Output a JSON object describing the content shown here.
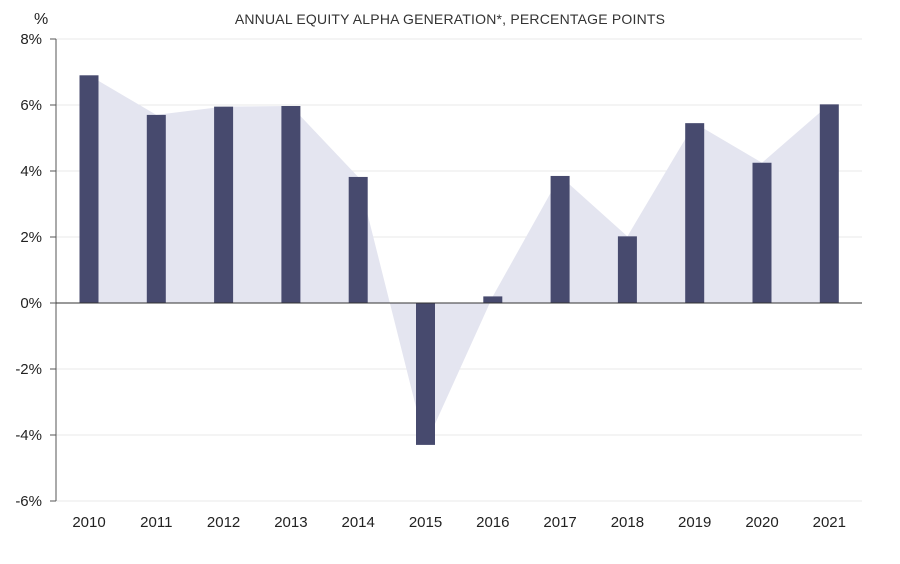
{
  "chart_data": {
    "type": "bar",
    "title": "ANNUAL EQUITY ALPHA GENERATION*, PERCENTAGE POINTS",
    "y_unit": "%",
    "xlabel": "",
    "ylabel": "%",
    "categories": [
      "2010",
      "2011",
      "2012",
      "2013",
      "2014",
      "2015",
      "2016",
      "2017",
      "2018",
      "2019",
      "2020",
      "2021"
    ],
    "values": [
      6.9,
      5.7,
      5.95,
      5.97,
      3.82,
      -4.3,
      0.2,
      3.85,
      2.02,
      5.45,
      4.25,
      6.02
    ],
    "ylim": [
      -6,
      8
    ],
    "yticks": [
      8,
      6,
      4,
      2,
      0,
      -2,
      -4,
      -6
    ],
    "ytick_labels": [
      "8%",
      "6%",
      "4%",
      "2%",
      "0%",
      "-2%",
      "-4%",
      "-6%"
    ],
    "grid": true,
    "series_overlay": "area",
    "colors": {
      "bar": "#474a6e",
      "area": "#e4e5f0",
      "grid": "#e8e8e8",
      "axis": "#555555"
    }
  }
}
